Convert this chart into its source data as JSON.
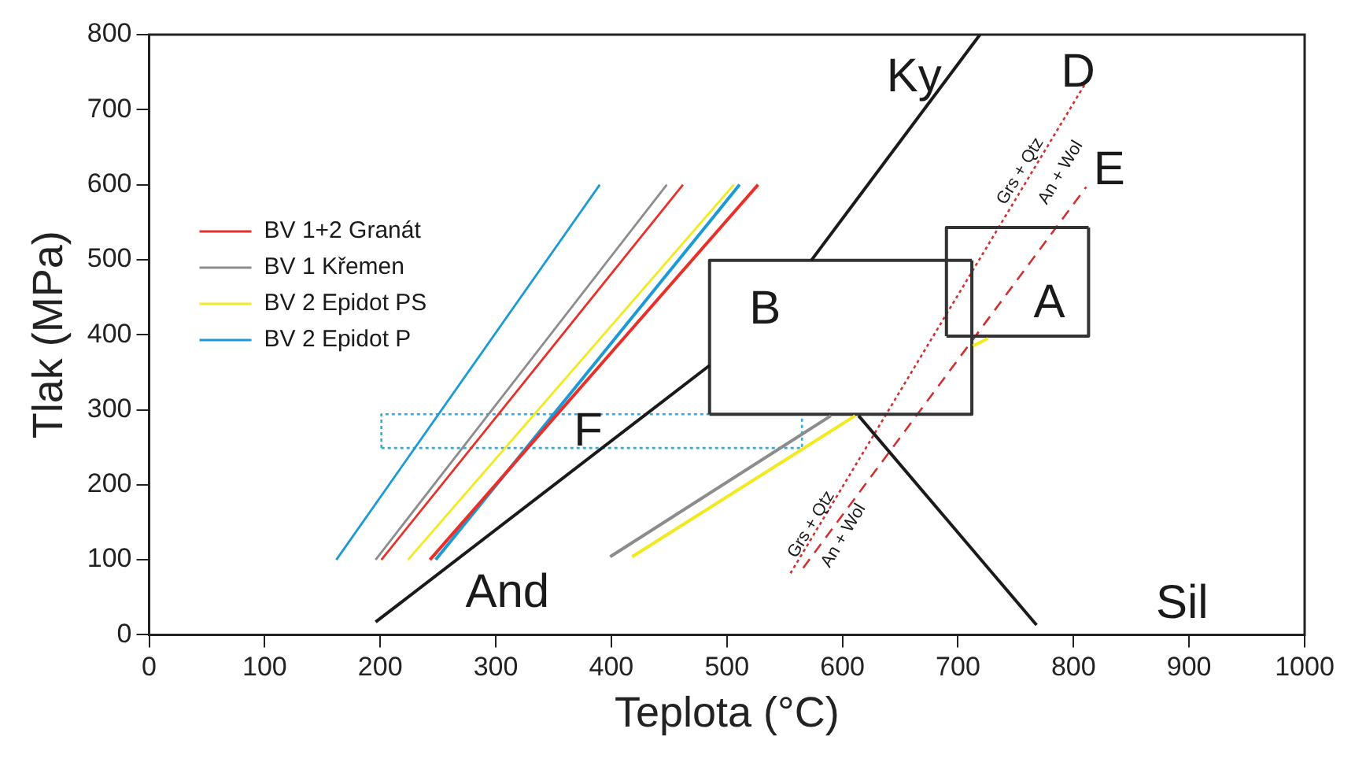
{
  "chart_data": {
    "type": "line",
    "xlabel": "Teplota (°C)",
    "ylabel": "Tlak (MPa)",
    "xlim": [
      0,
      1000
    ],
    "xticks": [
      0,
      100,
      200,
      300,
      400,
      500,
      600,
      700,
      800,
      900,
      1000
    ],
    "ylim": [
      0,
      800
    ],
    "yticks": [
      0,
      100,
      200,
      300,
      400,
      500,
      600,
      700,
      800
    ],
    "grid": false,
    "legend": "top left",
    "marker": "none",
    "series": [
      {
        "name": "BV 1+2 Granát",
        "color": "#e8302a",
        "x": [
          201,
          462
        ],
        "values": [
          100,
          600
        ]
      },
      {
        "color": "#e8302a",
        "x": [
          243,
          527
        ],
        "values": [
          100,
          600
        ]
      },
      {
        "name": "BV 1 Křemen",
        "color": "#8c8c8c",
        "x": [
          196,
          448
        ],
        "values": [
          100,
          600
        ]
      },
      {
        "color": "#8c8c8c",
        "x": [
          399,
          590
        ],
        "values": [
          104,
          292
        ]
      },
      {
        "name": "BV 2 Epidot PS",
        "color": "#f2ea1e",
        "x": [
          224,
          506
        ],
        "values": [
          100,
          600
        ]
      },
      {
        "color": "#f2ea1e",
        "x": [
          418,
          611
        ],
        "values": [
          104,
          292
        ]
      },
      {
        "color": "#f2ea1e",
        "x": [
          713,
          726
        ],
        "values": [
          385,
          395
        ]
      },
      {
        "name": "BV 2 Epidot P",
        "color": "#1b9ad6",
        "x": [
          162,
          390
        ],
        "values": [
          100,
          600
        ]
      },
      {
        "color": "#1b9ad6",
        "x": [
          248,
          511
        ],
        "values": [
          100,
          600
        ]
      },
      {
        "color": "#1a1a1a",
        "x": [
          196,
          485
        ],
        "values": [
          17,
          359
        ]
      },
      {
        "color": "#1a1a1a",
        "x": [
          573,
          719
        ],
        "values": [
          499,
          800
        ]
      },
      {
        "color": "#1a1a1a",
        "x": [
          614,
          768
        ],
        "values": [
          292,
          13
        ]
      },
      {
        "color": "#333333",
        "x": [
          485,
          712,
          712
        ],
        "values": [
          294,
          294,
          499
        ]
      },
      {
        "color": "#333333",
        "x": [
          485,
          485,
          712
        ],
        "values": [
          294,
          499,
          499
        ]
      },
      {
        "color": "#333333",
        "x": [
          690,
          813,
          813
        ],
        "values": [
          398,
          398,
          543
        ]
      },
      {
        "color": "#333333",
        "x": [
          690,
          690,
          813
        ],
        "values": [
          398,
          543,
          543
        ]
      },
      {
        "color": "#3aa7d4",
        "line_style": "dotted",
        "x": [
          201,
          565,
          565
        ],
        "values": [
          249,
          249,
          294
        ]
      },
      {
        "color": "#3aa7d4",
        "line_style": "dotted",
        "x": [
          201,
          201,
          565
        ],
        "values": [
          249,
          294,
          294
        ]
      },
      {
        "color": "#d03030",
        "line_style": "dotted",
        "x": [
          555,
          811
        ],
        "values": [
          82,
          737
        ]
      },
      {
        "color": "#d03030",
        "line_style": "dashed",
        "x": [
          566,
          811
        ],
        "values": [
          89,
          597
        ]
      }
    ],
    "annotations": [
      "Ky",
      "D",
      "E",
      "A",
      "B",
      "F",
      "And",
      "Sil",
      "Grs + Qtz",
      "An + Wol",
      "Grs + Qtz",
      "An + Wol"
    ]
  }
}
